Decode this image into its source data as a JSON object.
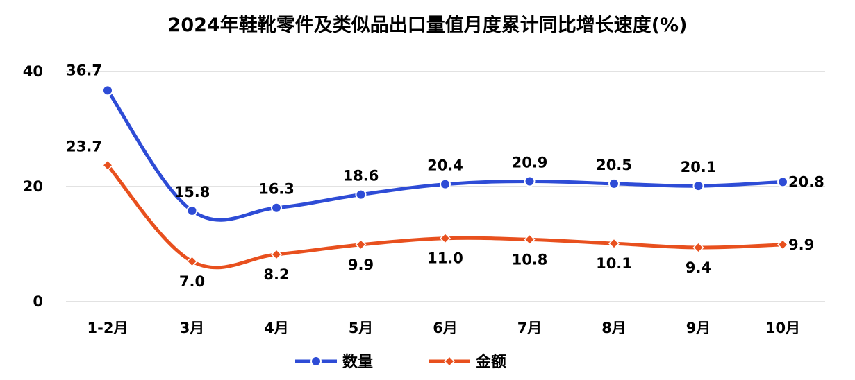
{
  "chart_data": {
    "type": "line",
    "title": "2024年鞋靴零件及类似品出口量值月度累计同比增长速度(%)",
    "categories": [
      "1-2月",
      "3月",
      "4月",
      "5月",
      "6月",
      "7月",
      "8月",
      "9月",
      "10月"
    ],
    "series": [
      {
        "name": "数量",
        "color": "#2E4CD6",
        "marker": "circle",
        "values": [
          36.7,
          15.8,
          16.3,
          18.6,
          20.4,
          20.9,
          20.5,
          20.1,
          20.8
        ]
      },
      {
        "name": "金额",
        "color": "#E8501E",
        "marker": "diamond",
        "values": [
          23.7,
          7.0,
          8.2,
          9.9,
          11.0,
          10.8,
          10.1,
          9.4,
          9.9
        ]
      }
    ],
    "ylim": [
      0,
      40
    ],
    "yticks": [
      0,
      20,
      40
    ],
    "grid": true,
    "legend_position": "bottom-center"
  }
}
